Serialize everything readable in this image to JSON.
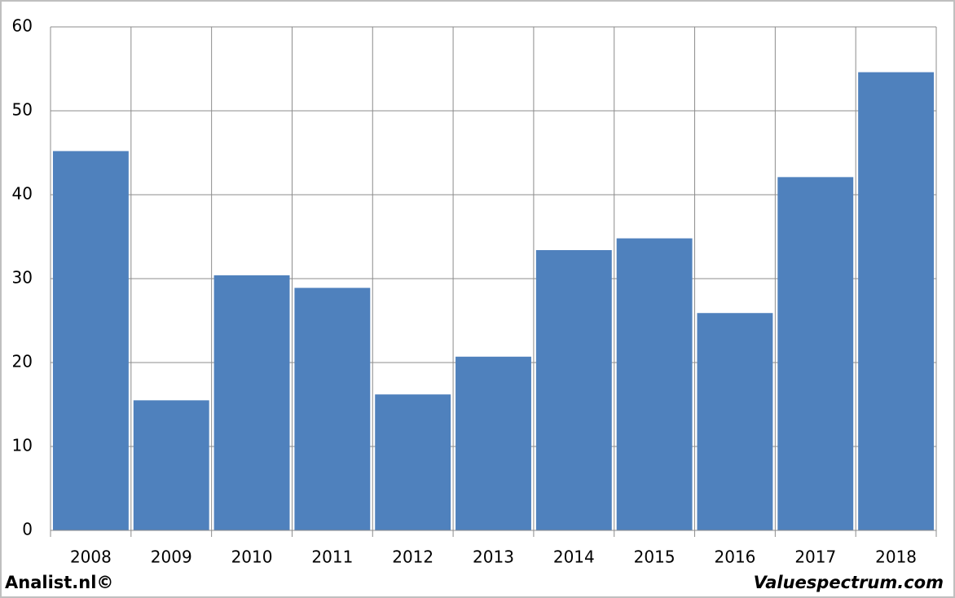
{
  "chart_data": {
    "type": "bar",
    "categories": [
      "2008",
      "2009",
      "2010",
      "2011",
      "2012",
      "2013",
      "2014",
      "2015",
      "2016",
      "2017",
      "2018"
    ],
    "values": [
      45.2,
      15.5,
      30.4,
      28.9,
      16.2,
      20.7,
      33.4,
      34.8,
      25.9,
      42.1,
      54.6
    ],
    "color": "#4f81bd",
    "ylim": [
      0,
      60
    ],
    "yticks": [
      0,
      10,
      20,
      30,
      40,
      50,
      60
    ],
    "grid": true,
    "annotations": [
      "Analist.nl©",
      "Valuespectrum.com"
    ]
  }
}
